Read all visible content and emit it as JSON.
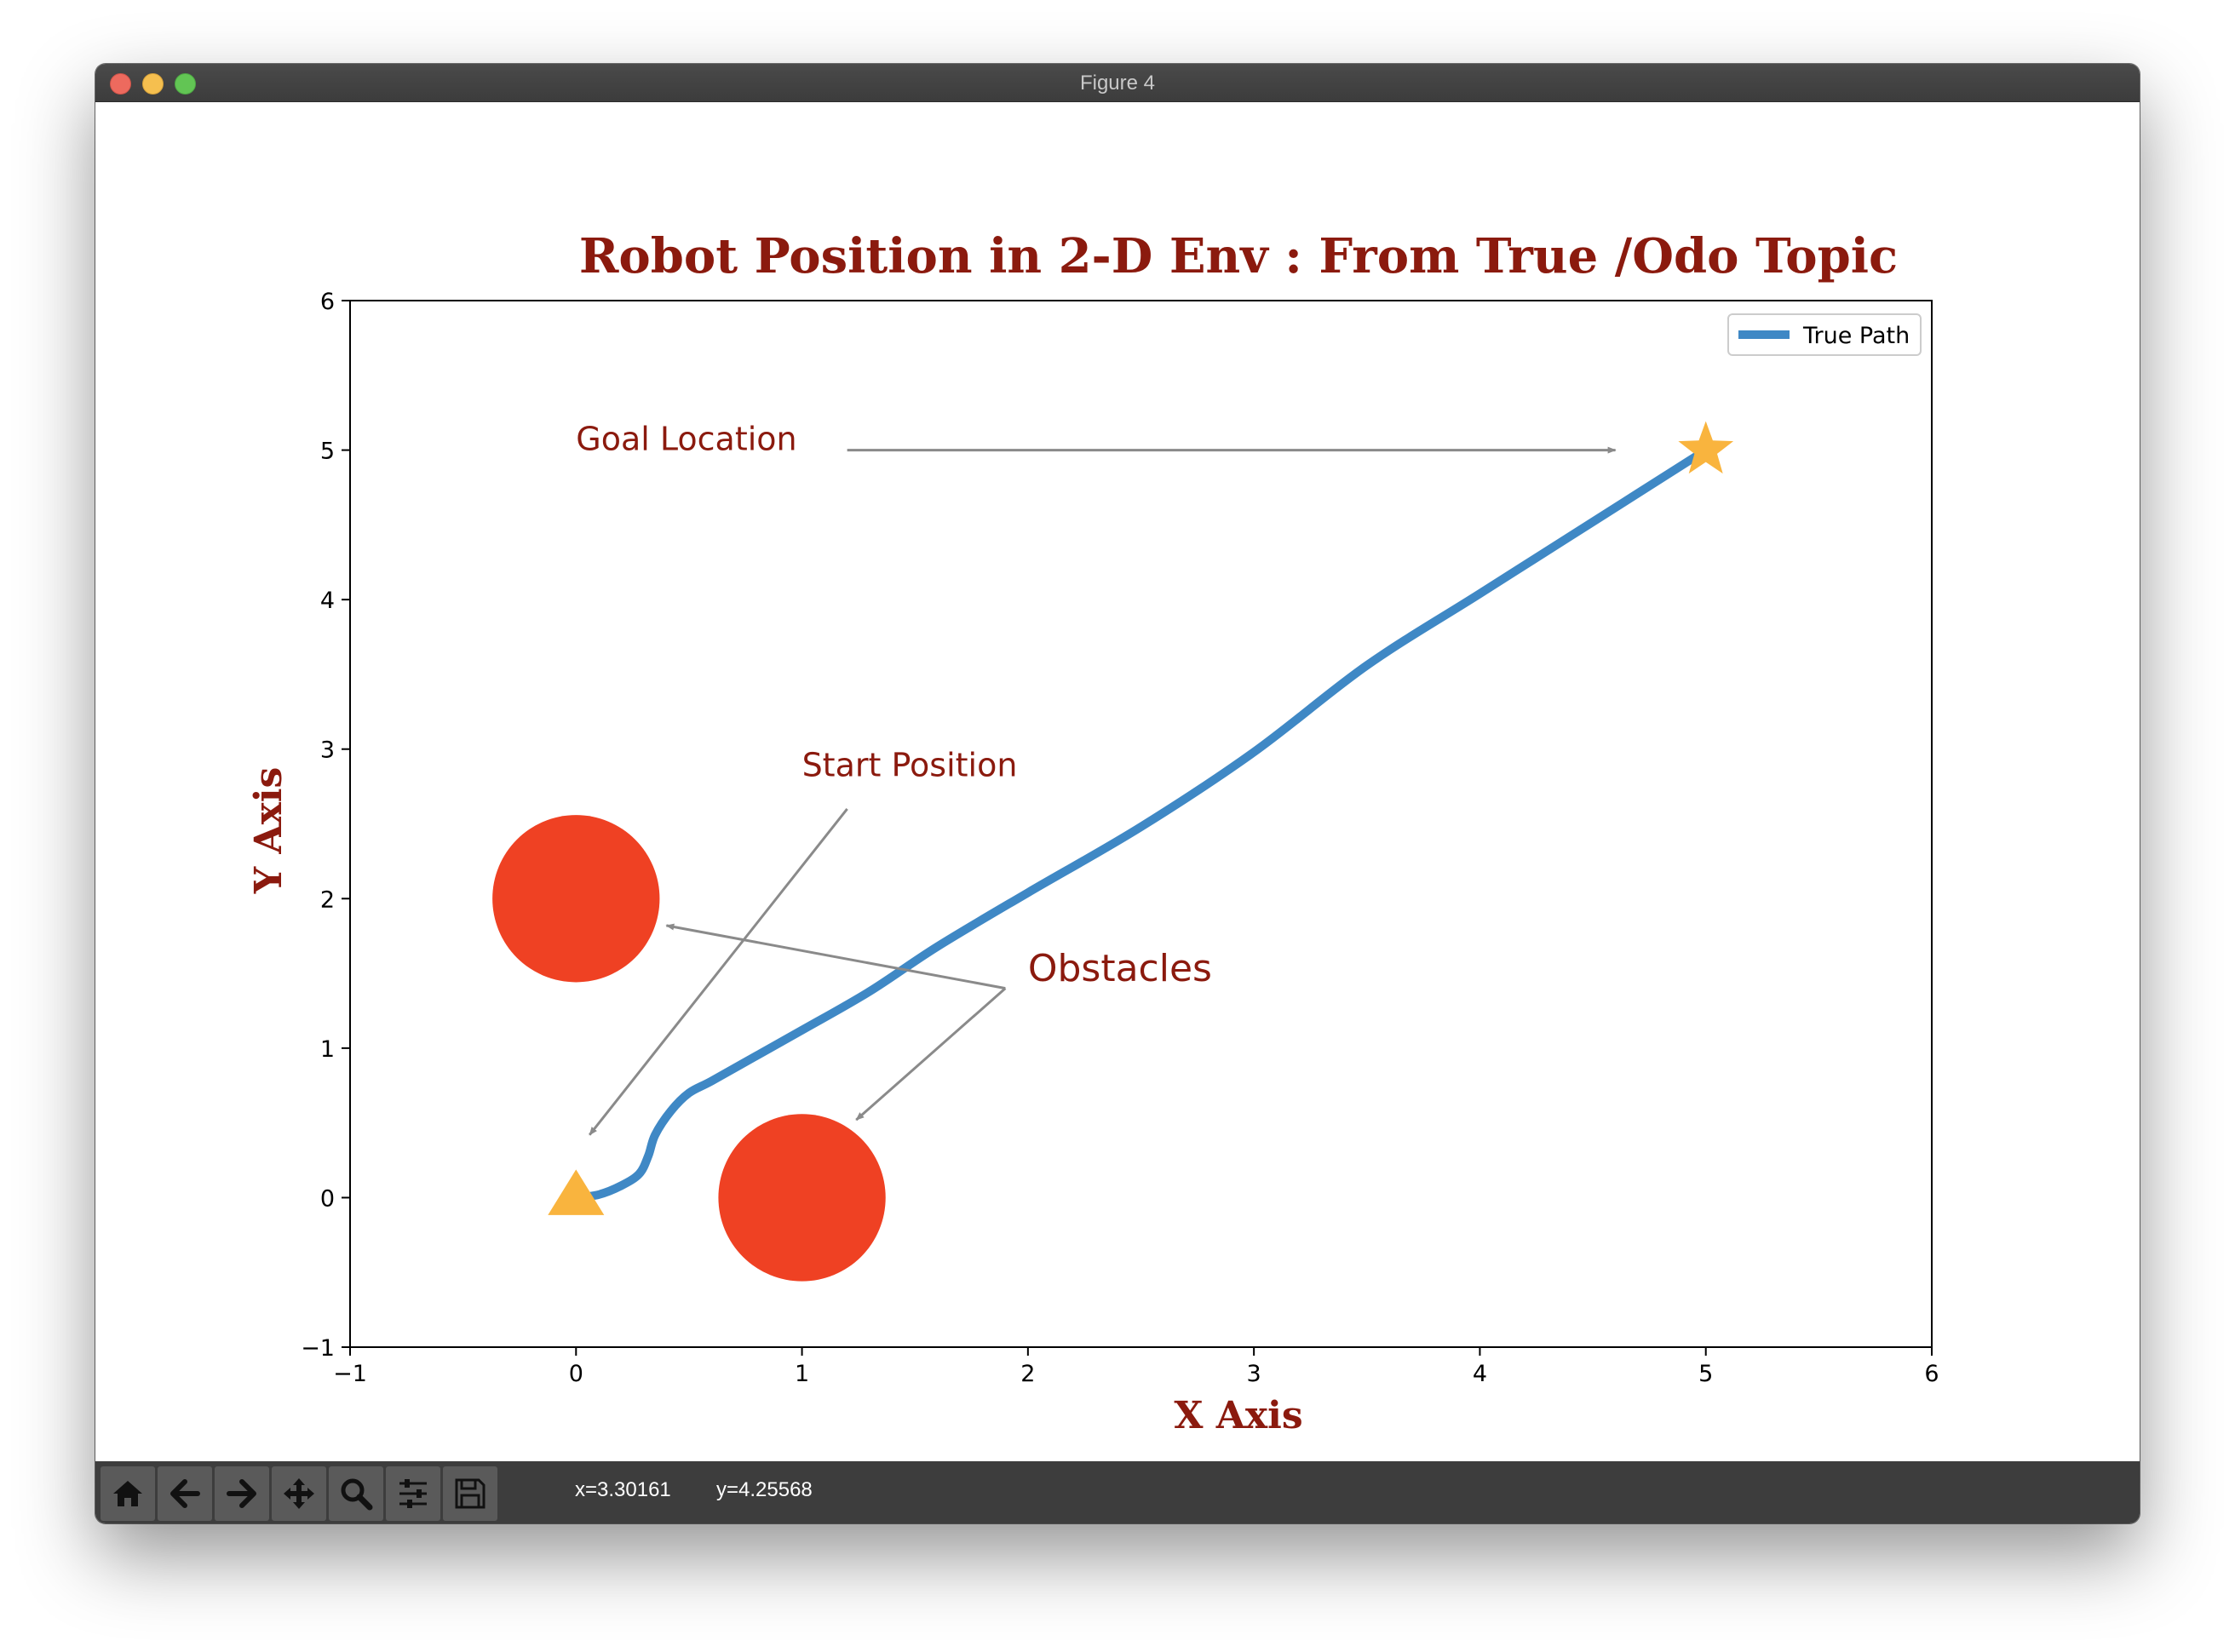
{
  "window": {
    "title": "Figure 4"
  },
  "toolbar": {
    "buttons": [
      {
        "name": "home-button",
        "icon": "home-icon"
      },
      {
        "name": "back-button",
        "icon": "arrow-left-icon"
      },
      {
        "name": "forward-button",
        "icon": "arrow-right-icon"
      },
      {
        "name": "pan-button",
        "icon": "move-icon"
      },
      {
        "name": "zoom-button",
        "icon": "magnifier-icon"
      },
      {
        "name": "configure-subplots-button",
        "icon": "sliders-icon"
      },
      {
        "name": "save-button",
        "icon": "floppy-disk-icon"
      }
    ],
    "x_readout": "x=3.30161",
    "y_readout": "y=4.25568"
  },
  "chart_data": {
    "type": "line",
    "title": "Robot Position in 2-D Env : From True /Odo Topic",
    "xlabel": "X Axis",
    "ylabel": "Y Axis",
    "xlim": [
      -1,
      6
    ],
    "ylim": [
      -1,
      6
    ],
    "xticks": [
      -1,
      0,
      1,
      2,
      3,
      4,
      5,
      6
    ],
    "yticks": [
      -1,
      0,
      1,
      2,
      3,
      4,
      5,
      6
    ],
    "tick_labels_x": [
      "−1",
      "0",
      "1",
      "2",
      "3",
      "4",
      "5",
      "6"
    ],
    "tick_labels_y": [
      "−1",
      "0",
      "1",
      "2",
      "3",
      "4",
      "5",
      "6"
    ],
    "grid": false,
    "legend": {
      "placement": "top-right",
      "entries": [
        "True Path"
      ]
    },
    "series": [
      {
        "name": "True Path",
        "color": "#3f88c5",
        "x": [
          0,
          0.1,
          0.2,
          0.28,
          0.32,
          0.35,
          0.42,
          0.5,
          0.6,
          0.8,
          1.0,
          1.3,
          1.6,
          2.0,
          2.5,
          3.0,
          3.5,
          4.0,
          4.5,
          5.0
        ],
        "y": [
          0,
          0.02,
          0.08,
          0.16,
          0.28,
          0.42,
          0.58,
          0.7,
          0.78,
          0.95,
          1.12,
          1.38,
          1.68,
          2.04,
          2.48,
          2.98,
          3.56,
          4.04,
          4.52,
          5.0
        ]
      }
    ],
    "markers": [
      {
        "name": "start-triangle",
        "shape": "triangle",
        "x": 0,
        "y": 0,
        "color": "#f9b43e"
      },
      {
        "name": "goal-star",
        "shape": "star",
        "x": 5,
        "y": 5,
        "color": "#f9b43e"
      }
    ],
    "obstacles": [
      {
        "x": 0,
        "y": 2,
        "r": 0.37,
        "color": "#ef4123"
      },
      {
        "x": 1,
        "y": 0,
        "r": 0.37,
        "color": "#ef4123"
      }
    ],
    "annotations": [
      {
        "name": "goal-location-annotation",
        "text": "Goal Location",
        "x": 0,
        "y": 5,
        "arrows": [
          {
            "from": [
              1.2,
              5.0
            ],
            "to": [
              4.6,
              5.0
            ]
          }
        ]
      },
      {
        "name": "start-position-annotation",
        "text": "Start Position",
        "x": 1.0,
        "y": 2.82,
        "arrows": [
          {
            "from": [
              1.2,
              2.6
            ],
            "to": [
              0.06,
              0.42
            ]
          }
        ]
      },
      {
        "name": "obstacles-annotation",
        "text": "Obstacles",
        "x": 2.0,
        "y": 1.45,
        "arrows": [
          {
            "from": [
              1.9,
              1.4
            ],
            "to": [
              0.4,
              1.82
            ]
          },
          {
            "from": [
              1.9,
              1.4
            ],
            "to": [
              1.24,
              0.52
            ]
          }
        ]
      }
    ],
    "text_color": "#8b1a0e",
    "arrow_color": "#8a8a8a"
  }
}
